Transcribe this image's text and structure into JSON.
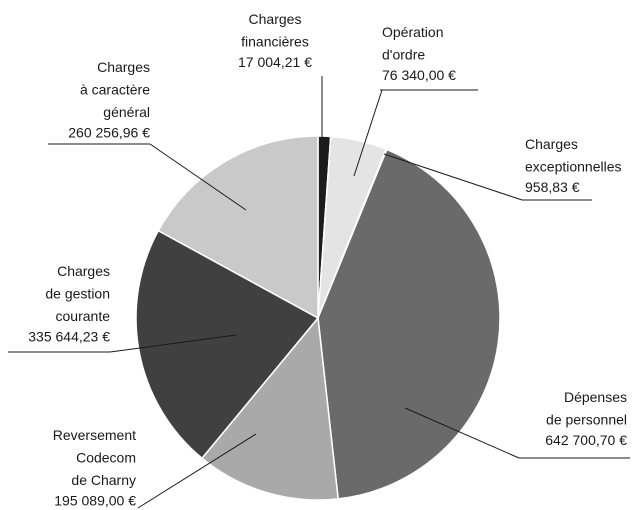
{
  "chart_data": {
    "type": "pie",
    "categories": [
      [
        "Charges",
        "financières"
      ],
      [
        "Opération",
        "d'ordre"
      ],
      [
        "Charges",
        "exceptionnelles"
      ],
      [
        "Dépenses",
        "de personnel"
      ],
      [
        "Reversement",
        "Codecom",
        "de Charny"
      ],
      [
        "Charges",
        "de gestion",
        "courante"
      ],
      [
        "Charges",
        "à caractère",
        "général"
      ]
    ],
    "values": [
      17004.21,
      76340.0,
      958.83,
      642700.7,
      195089.0,
      335644.23,
      260256.96
    ],
    "value_labels": [
      "17 004,21 €",
      "76 340,00 €",
      "958,83 €",
      "642 700,70 €",
      "195 089,00 €",
      "335 644,23 €",
      "260 256,96 €"
    ],
    "colors": [
      "#1c1c1c",
      "#e4e4e4",
      "#f4f4f4",
      "#6a6a6a",
      "#a9a9a9",
      "#404040",
      "#c9c9c9"
    ]
  }
}
